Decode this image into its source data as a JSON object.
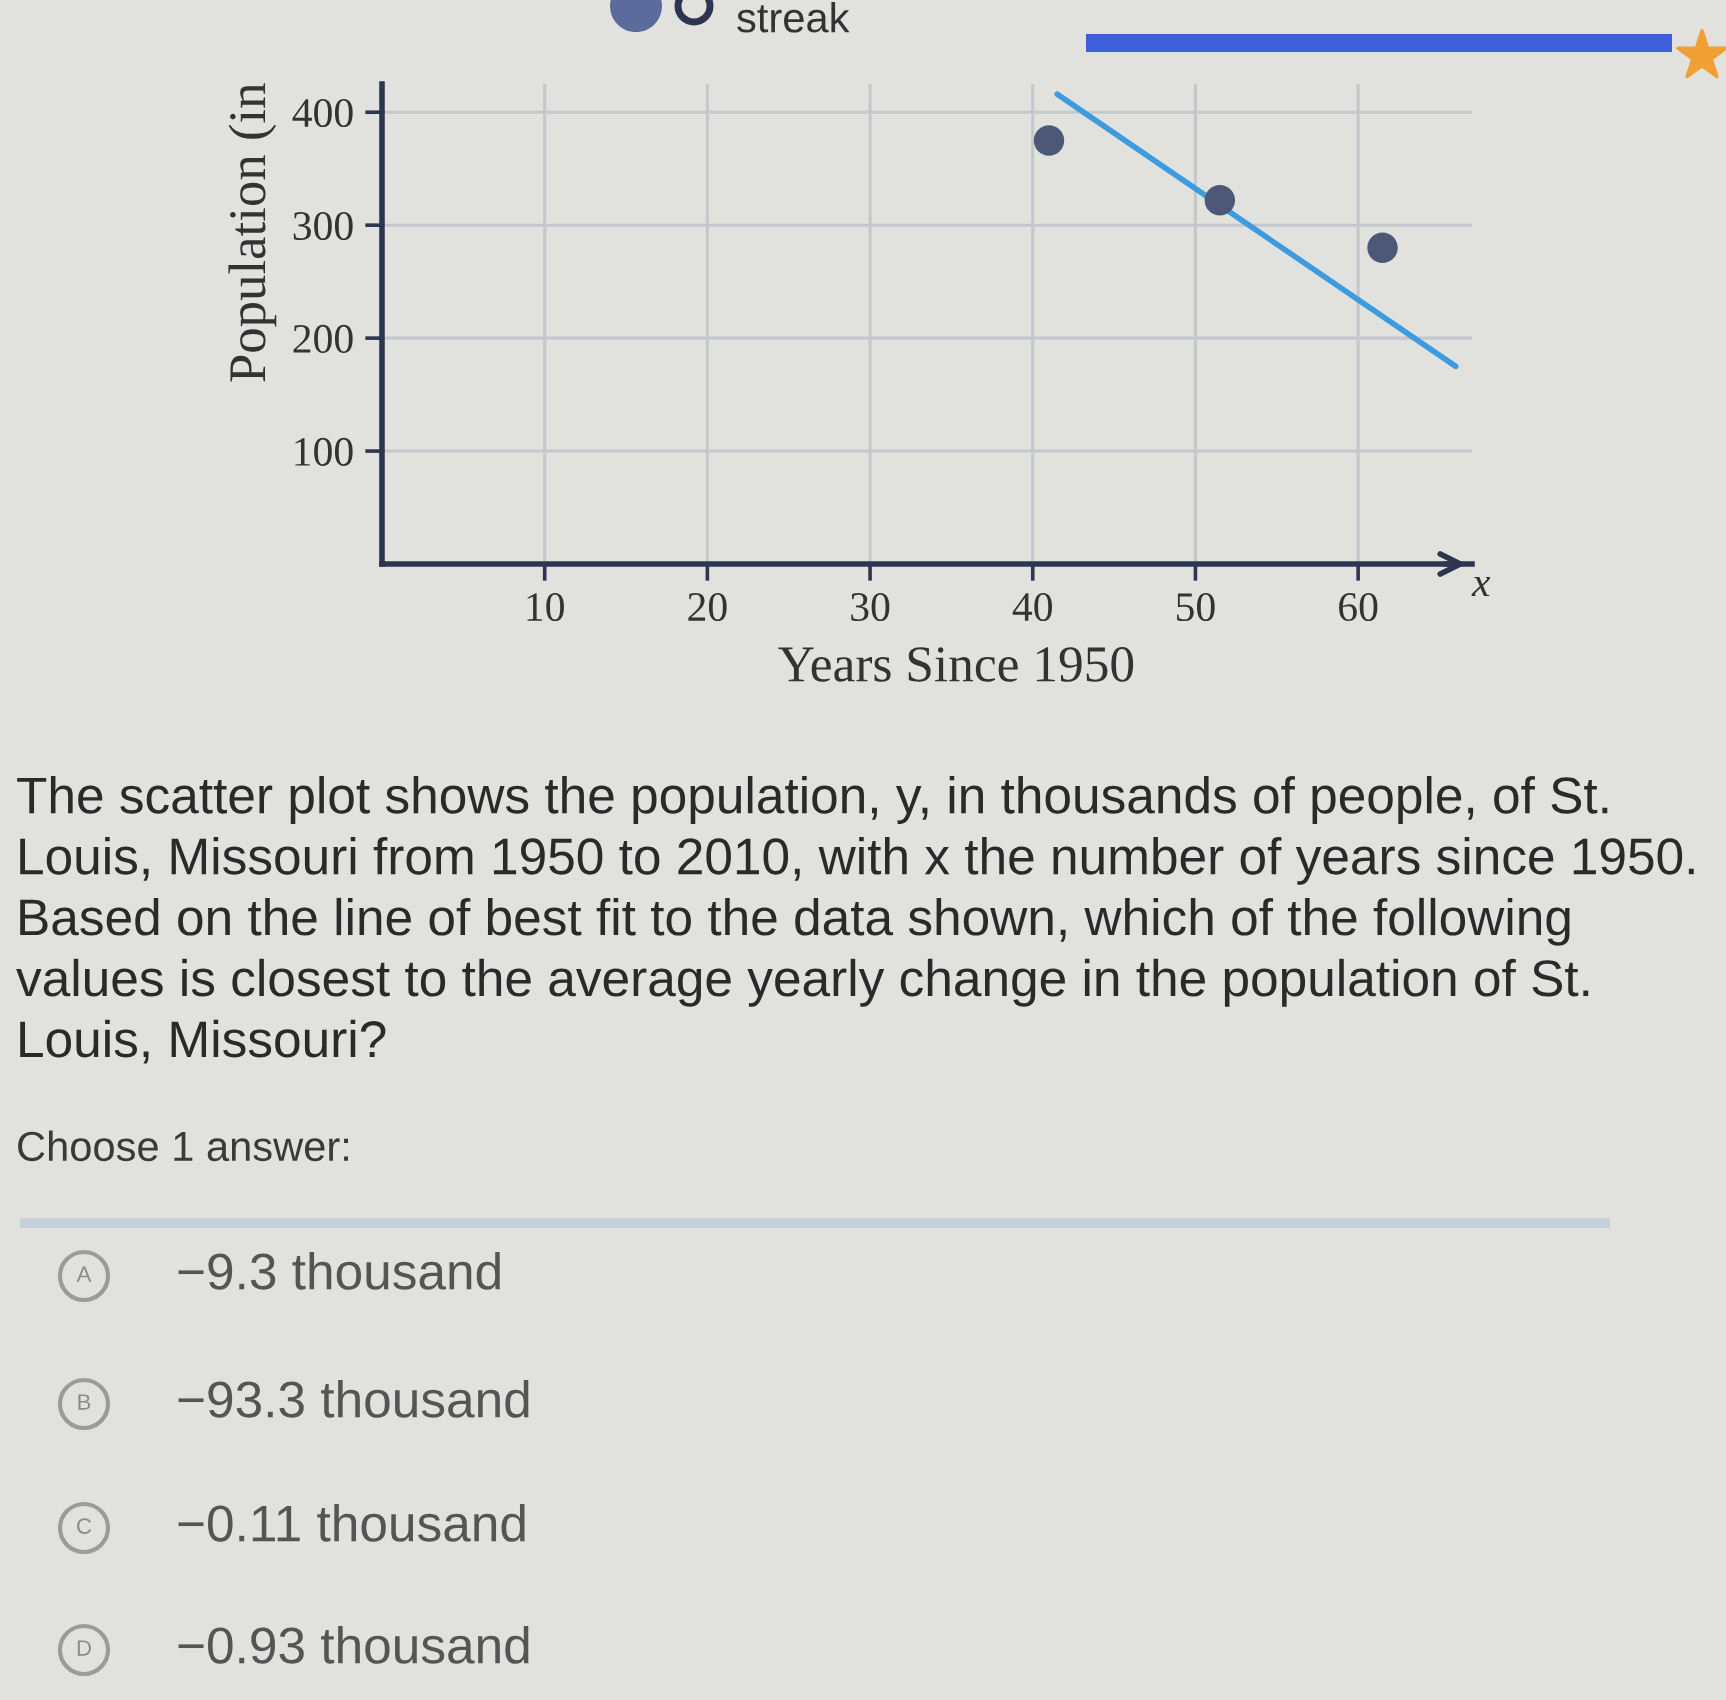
{
  "chart_data": {
    "type": "scatter",
    "xlabel": "Years Since 1950",
    "ylabel": "Population (in",
    "annotations": [
      "streak",
      "x",
      "The scatter plot shows the population, y, in thousands of people, of St. Louis, Missouri from 1950 to 2010, with x the number of years since 1950. Based on the line of best fit to the data shown, which of the following values is closest to the average yearly change in the population of St. Louis, Missouri?",
      "Choose 1 answer:",
      "A",
      "−9.3 thousand",
      "B",
      "−93.3 thousand",
      "C",
      "−0.11 thousand",
      "D",
      "−0.93 thousand"
    ],
    "series": [
      {
        "x": [
          41,
          51.5,
          61.5
        ],
        "values": [
          375,
          322,
          280
        ],
        "color": "#4c5876",
        "marker": "circle"
      },
      {
        "type": "line",
        "x": [
          41.5,
          66
        ],
        "values": [
          416,
          175
        ],
        "color": "#3d9be0",
        "marker": "none"
      }
    ],
    "xlim": [
      0,
      67
    ],
    "ylim": [
      0,
      425
    ],
    "xticks": [
      10,
      20,
      30,
      40,
      50,
      60
    ],
    "yticks": [
      100,
      200,
      300,
      400
    ],
    "grid": true
  }
}
